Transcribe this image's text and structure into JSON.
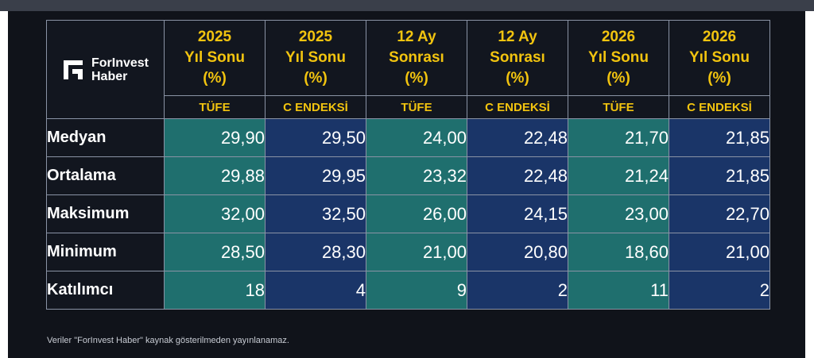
{
  "brand": {
    "line1": "ForInvest",
    "line2": "Haber"
  },
  "chart_data": {
    "type": "table",
    "columns": [
      {
        "header": [
          "2025",
          "Yıl Sonu",
          "(%)"
        ],
        "sub": "TÜFE",
        "color": "#1f6f6e"
      },
      {
        "header": [
          "2025",
          "Yıl Sonu",
          "(%)"
        ],
        "sub": "C ENDEKSİ",
        "color": "#1a3568"
      },
      {
        "header": [
          "12 Ay",
          "Sonrası",
          "(%)"
        ],
        "sub": "TÜFE",
        "color": "#1f6f6e"
      },
      {
        "header": [
          "12 Ay",
          "Sonrası",
          "(%)"
        ],
        "sub": "C ENDEKSİ",
        "color": "#1a3568"
      },
      {
        "header": [
          "2026",
          "Yıl Sonu",
          "(%)"
        ],
        "sub": "TÜFE",
        "color": "#1f6f6e"
      },
      {
        "header": [
          "2026",
          "Yıl Sonu",
          "(%)"
        ],
        "sub": "C ENDEKSİ",
        "color": "#1a3568"
      }
    ],
    "rows": [
      {
        "label": "Medyan",
        "values": [
          "29,90",
          "29,50",
          "24,00",
          "22,48",
          "21,70",
          "21,85"
        ]
      },
      {
        "label": "Ortalama",
        "values": [
          "29,88",
          "29,95",
          "23,32",
          "22,48",
          "21,24",
          "21,85"
        ]
      },
      {
        "label": "Maksimum",
        "values": [
          "32,00",
          "32,50",
          "26,00",
          "24,15",
          "23,00",
          "22,70"
        ]
      },
      {
        "label": "Minimum",
        "values": [
          "28,50",
          "28,30",
          "21,00",
          "20,80",
          "18,60",
          "21,00"
        ]
      },
      {
        "label": "Katılımcı",
        "values": [
          "18",
          "4",
          "9",
          "2",
          "11",
          "2"
        ]
      }
    ]
  },
  "footnote": "Veriler \"ForInvest Haber\" kaynak gösterilmeden yayınlanamaz.",
  "colors": {
    "header_text": "#f2c40f",
    "teal": "#1f6f6e",
    "navy": "#1a3568",
    "background": "#10131a"
  }
}
